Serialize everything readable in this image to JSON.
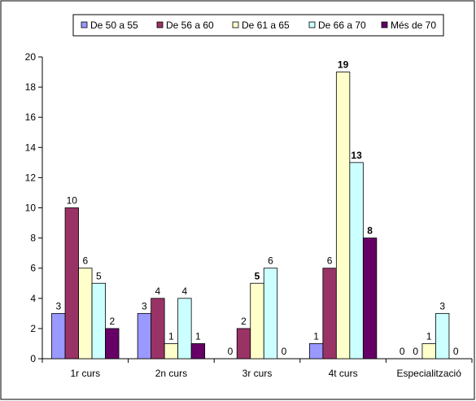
{
  "chart_data": {
    "type": "bar",
    "title": "",
    "xlabel": "",
    "ylabel": "",
    "ylim": [
      0,
      20
    ],
    "ytick_step": 2,
    "grid": false,
    "legend_position": "top",
    "categories": [
      "1r curs",
      "2n curs",
      "3r curs",
      "4t curs",
      "Especialització"
    ],
    "series": [
      {
        "name": "De 50 a 55",
        "color": "#9999FF",
        "values": [
          3,
          3,
          0,
          1,
          0
        ]
      },
      {
        "name": "De 56 a 60",
        "color": "#993366",
        "values": [
          10,
          4,
          2,
          6,
          0
        ]
      },
      {
        "name": "De 61 a 65",
        "color": "#FFFFCC",
        "values": [
          6,
          1,
          5,
          19,
          1
        ]
      },
      {
        "name": "De 66 a 70",
        "color": "#CCFFFF",
        "values": [
          5,
          4,
          6,
          13,
          3
        ]
      },
      {
        "name": "Més de 70",
        "color": "#660066",
        "values": [
          2,
          1,
          0,
          8,
          0
        ]
      }
    ]
  }
}
